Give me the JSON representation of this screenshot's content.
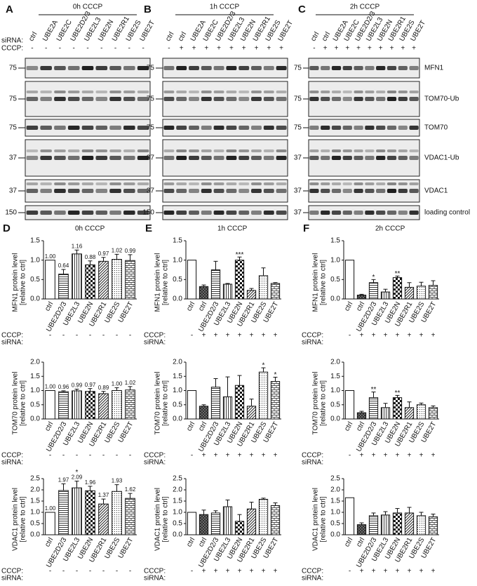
{
  "blot_labels": {
    "sirna": "siRNA:",
    "cccp": "CCCP:"
  },
  "proteins": [
    "MFN1",
    "TOM70-Ub",
    "TOM70",
    "VDAC1-Ub",
    "VDAC1",
    "loading control"
  ],
  "blots": [
    {
      "letter": "A",
      "title": "0h CCCP",
      "lanes": [
        "ctrl",
        "UBE2A",
        "UBE2C",
        "UBE2D2/3",
        "UBE2L3",
        "UBE2N",
        "UBE2R1",
        "UBE2S",
        "UBE2T"
      ],
      "cccp": [
        "-",
        "-",
        "-",
        "-",
        "-",
        "-",
        "-",
        "-",
        "-"
      ],
      "markers": [
        75,
        75,
        75,
        37,
        37,
        150
      ]
    },
    {
      "letter": "B",
      "title": "1h CCCP",
      "lanes": [
        "ctrl",
        "ctrl",
        "UBE2A",
        "UBE2C",
        "UBE2D2/3",
        "UBE2L3",
        "UBE2N",
        "UBE2R1",
        "UBE2S",
        "UBE2T"
      ],
      "cccp": [
        "-",
        "+",
        "+",
        "+",
        "+",
        "+",
        "+",
        "+",
        "+",
        "+"
      ],
      "markers": [
        75,
        75,
        75,
        37,
        37,
        150
      ]
    },
    {
      "letter": "C",
      "title": "2h CCCP",
      "lanes": [
        "ctrl",
        "ctrl",
        "UBE2A",
        "UBE2C",
        "UBE2D2/3",
        "UBE2L3",
        "UBE2N",
        "UBE2R1",
        "UBE2S",
        "UBE2T"
      ],
      "cccp": [
        "-",
        "+",
        "+",
        "+",
        "+",
        "+",
        "+",
        "+",
        "+",
        "+"
      ],
      "markers": [
        75,
        75,
        75,
        37,
        37,
        37
      ]
    }
  ],
  "chart_data": [
    {
      "type": "bar",
      "panel": "D",
      "title": "0h CCCP",
      "ylabel": [
        "MFN1 protein level",
        "[relative to ctrl]"
      ],
      "row_labels": {
        "cccp": "CCCP:",
        "sirna": "siRNA:"
      },
      "categories": [
        "ctrl",
        "UBE2D2/3",
        "UBE2L3",
        "UBE2N",
        "UBE2R1",
        "UBE2S",
        "UBE2T"
      ],
      "cccp": [
        "-",
        "-",
        "-",
        "-",
        "-",
        "-",
        "-"
      ],
      "values": [
        1,
        0.64,
        1.16,
        0.88,
        0.97,
        1.02,
        0.99
      ],
      "value_labels": [
        "1.00",
        "0.64",
        "1.16",
        "0.88",
        "0.97",
        "1.02",
        "0.99"
      ],
      "errors": [
        0,
        0.12,
        0.1,
        0.1,
        0.1,
        0.13,
        0.15
      ],
      "significance": [
        null,
        null,
        null,
        null,
        null,
        null,
        null
      ],
      "fills": [
        "white",
        "hlines",
        "vlines",
        "check",
        "diag",
        "dots",
        "brick"
      ],
      "ylim": [
        0,
        1.5
      ],
      "yticks": [
        {
          "value": 0,
          "label": "0.0"
        },
        0.5,
        {
          "value": 1,
          "label": "1.0"
        },
        1.5
      ]
    },
    {
      "type": "bar",
      "ylabel": [
        "TOM70 protein level",
        "[relative to ctrl]"
      ],
      "row_labels": {
        "cccp": "CCCP:",
        "sirna": "siRNA:"
      },
      "categories": [
        "ctrl",
        "UBE2D2/3",
        "UBE2L3",
        "UBE2N",
        "UBE2R1",
        "UBE2S",
        "UBE2T"
      ],
      "cccp": [
        "-",
        "-",
        "-",
        "-",
        "-",
        "-",
        "-"
      ],
      "values": [
        1,
        0.96,
        0.99,
        0.97,
        0.89,
        1,
        1.02
      ],
      "value_labels": [
        "1.00",
        "0.96",
        "0.99",
        "0.97",
        "0.89",
        "1.00",
        "1.02"
      ],
      "errors": [
        0,
        0.03,
        0.06,
        0.1,
        0.08,
        0.1,
        0.12
      ],
      "significance": [
        null,
        null,
        null,
        null,
        null,
        null,
        null
      ],
      "fills": [
        "white",
        "hlines",
        "vlines",
        "check",
        "diag",
        "dots",
        "brick"
      ],
      "ylim": [
        0,
        2
      ],
      "yticks": [
        {
          "value": 0,
          "label": "0.0"
        },
        0.5,
        {
          "value": 1,
          "label": "1.0"
        },
        1.5,
        {
          "value": 2,
          "label": "2.0"
        }
      ]
    },
    {
      "type": "bar",
      "ylabel": [
        "VDAC1 protein level",
        "[relative to ctrl]"
      ],
      "row_labels": {
        "cccp": "CCCP:",
        "sirna": "siRNA:"
      },
      "categories": [
        "ctrl",
        "UBE2D2/3",
        "UBE2L3",
        "UBE2N",
        "UBE2R1",
        "UBE2S",
        "UBE2T"
      ],
      "cccp": [
        "-",
        "-",
        "-",
        "-",
        "-",
        "-",
        "-"
      ],
      "values": [
        1,
        1.97,
        2.09,
        1.96,
        1.37,
        1.93,
        1.62
      ],
      "value_labels": [
        "1.00",
        "1.97",
        "2.09",
        "1.96",
        "1.37",
        "1.93",
        "1.62"
      ],
      "errors": [
        0,
        0.3,
        0.3,
        0.2,
        0.22,
        0.3,
        0.22
      ],
      "significance": [
        null,
        null,
        "*",
        null,
        null,
        null,
        null
      ],
      "fills": [
        "white",
        "hlines",
        "vlines",
        "check",
        "diag",
        "dots",
        "brick"
      ],
      "ylim": [
        0,
        2.5
      ],
      "yticks": [
        {
          "value": 0,
          "label": "0.0"
        },
        0.5,
        {
          "value": 1,
          "label": "1.0"
        },
        1.5,
        {
          "value": 2,
          "label": "2.0"
        },
        2.5
      ]
    },
    {
      "type": "bar",
      "panel": "E",
      "title": "1h CCCP",
      "ylabel": [
        "MFN1 protein level",
        "[relative to ctrl]"
      ],
      "row_labels": {
        "cccp": "CCCP:",
        "sirna": "siRNA:"
      },
      "categories": [
        "ctrl",
        "ctrl",
        "UBE2D2/3",
        "UBE2L3",
        "UBE2N",
        "UBE2R1",
        "UBE2S",
        "UBE2T"
      ],
      "cccp": [
        "-",
        "+",
        "+",
        "+",
        "+",
        "+",
        "+",
        "+"
      ],
      "values": [
        1,
        0.32,
        0.75,
        0.38,
        1,
        0.22,
        0.6,
        0.4
      ],
      "errors": [
        0,
        0.04,
        0.22,
        0.02,
        0.08,
        0.05,
        0.2,
        0.02
      ],
      "significance": [
        null,
        null,
        null,
        null,
        "***",
        null,
        null,
        null
      ],
      "fills": [
        "white",
        "cross",
        "hlines",
        "vlines",
        "check",
        "diag",
        "dots",
        "brick"
      ],
      "ylim": [
        0,
        1.5
      ],
      "yticks": [
        {
          "value": 0,
          "label": "0.0"
        },
        0.5,
        {
          "value": 1,
          "label": "1.0"
        },
        1.5
      ]
    },
    {
      "type": "bar",
      "ylabel": [
        "TOM70 protein level",
        "[relative to ctrl]"
      ],
      "row_labels": {
        "cccp": "CCCP:",
        "sirna": "siRNA:"
      },
      "categories": [
        "ctrl",
        "ctrl",
        "UBE2D2/3",
        "UBE2L3",
        "UBE2N",
        "UBE2R1",
        "UBE2S",
        "UBE2T"
      ],
      "cccp": [
        "-",
        "+",
        "+",
        "+",
        "+",
        "+",
        "+",
        "+"
      ],
      "values": [
        1,
        0.45,
        1.12,
        0.78,
        1.18,
        0.45,
        1.65,
        1.32
      ],
      "errors": [
        0,
        0.05,
        0.3,
        0.7,
        0.35,
        0.25,
        0.15,
        0.15
      ],
      "significance": [
        null,
        null,
        null,
        null,
        null,
        null,
        "*",
        "*"
      ],
      "fills": [
        "white",
        "cross",
        "hlines",
        "vlines",
        "check",
        "diag",
        "dots",
        "brick"
      ],
      "ylim": [
        0,
        2
      ],
      "yticks": [
        {
          "value": 0,
          "label": "0.0"
        },
        0.5,
        {
          "value": 1,
          "label": "1.0"
        },
        1.5,
        {
          "value": 2,
          "label": "2.0"
        }
      ]
    },
    {
      "type": "bar",
      "ylabel": [
        "VDAC1 protein level",
        "[relative to ctrl]"
      ],
      "row_labels": {
        "cccp": "CCCP:",
        "sirna": "siRNA:"
      },
      "categories": [
        "ctrl",
        "ctrl",
        "UBE2D2/3",
        "UBE2L3",
        "UBE2N",
        "UBE2R1",
        "UBE2S",
        "UBE2T"
      ],
      "cccp": [
        "-",
        "+",
        "+",
        "+",
        "+",
        "+",
        "+",
        "+"
      ],
      "values": [
        1,
        0.9,
        0.97,
        1.25,
        0.6,
        1.15,
        1.58,
        1.3
      ],
      "errors": [
        0,
        0.2,
        0.1,
        0.3,
        0.3,
        0.3,
        0.05,
        0.12
      ],
      "significance": [
        null,
        null,
        null,
        null,
        null,
        null,
        null,
        null
      ],
      "fills": [
        "white",
        "cross",
        "hlines",
        "vlines",
        "check",
        "diag",
        "dots",
        "brick"
      ],
      "ylim": [
        0,
        2.5
      ],
      "yticks": [
        {
          "value": 0,
          "label": "0.0"
        },
        0.5,
        {
          "value": 1,
          "label": "1.0"
        },
        1.5,
        {
          "value": 2,
          "label": "2.0"
        },
        2.5
      ]
    },
    {
      "type": "bar",
      "panel": "F",
      "title": "2h CCCP",
      "ylabel": [
        "MFN1 protein level",
        "[relative to ctrl]"
      ],
      "row_labels": {
        "cccp": "CCCP:",
        "sirna": "siRNA:"
      },
      "categories": [
        "ctrl",
        "ctrl",
        "UBE2D2/3",
        "UBE2L3",
        "UBE2N",
        "UBE2R1",
        "UBE2S",
        "UBE2T"
      ],
      "cccp": [
        "-",
        "+",
        "+",
        "+",
        "+",
        "+",
        "+",
        "+"
      ],
      "values": [
        1,
        0.1,
        0.42,
        0.18,
        0.55,
        0.3,
        0.33,
        0.35
      ],
      "errors": [
        0,
        0.02,
        0.08,
        0.07,
        0.04,
        0.12,
        0.1,
        0.12
      ],
      "significance": [
        null,
        null,
        "*",
        null,
        "**",
        null,
        null,
        null
      ],
      "fills": [
        "white",
        "cross",
        "hlines",
        "vlines",
        "check",
        "diag",
        "dots",
        "brick"
      ],
      "ylim": [
        0,
        1.5
      ],
      "yticks": [
        {
          "value": 0,
          "label": "0.0"
        },
        0.5,
        {
          "value": 1,
          "label": "1.0"
        },
        1.5
      ]
    },
    {
      "type": "bar",
      "ylabel": [
        "TOM70 protein level",
        "[relative to ctrl]"
      ],
      "row_labels": {
        "cccp": "CCCP:",
        "sirna": "siRNA:"
      },
      "categories": [
        "ctrl",
        "ctrl",
        "UBE2D2/3",
        "UBE2L3",
        "UBE2N",
        "UBE2R1",
        "UBE2S",
        "UBE2T"
      ],
      "cccp": [
        "-",
        "+",
        "+",
        "+",
        "+",
        "+",
        "+",
        "+"
      ],
      "values": [
        1,
        0.22,
        0.75,
        0.4,
        0.75,
        0.4,
        0.5,
        0.4
      ],
      "errors": [
        0,
        0.05,
        0.2,
        0.15,
        0.08,
        0.2,
        0.06,
        0.06
      ],
      "significance": [
        null,
        null,
        "**",
        null,
        "**",
        null,
        null,
        null
      ],
      "fills": [
        "white",
        "cross",
        "hlines",
        "vlines",
        "check",
        "diag",
        "dots",
        "brick"
      ],
      "ylim": [
        0,
        2
      ],
      "yticks": [
        {
          "value": 0,
          "label": "0.0"
        },
        0.5,
        {
          "value": 1,
          "label": "1.0"
        },
        1.5,
        {
          "value": 2,
          "label": "2.0"
        }
      ]
    },
    {
      "type": "bar",
      "ylabel": [
        "VDAC1 protein level",
        "[relative to ctrl]"
      ],
      "row_labels": {
        "cccp": "CCCP:",
        "sirna": "siRNA:"
      },
      "categories": [
        "ctrl",
        "ctrl",
        "UBE2D2/3",
        "UBE2L3",
        "UBE2N",
        "UBE2R1",
        "UBE2S",
        "UBE2T"
      ],
      "cccp": [
        "-",
        "+",
        "+",
        "+",
        "+",
        "+",
        "+",
        "+"
      ],
      "values": [
        1.65,
        0.45,
        0.85,
        0.88,
        0.97,
        0.97,
        0.85,
        0.8
      ],
      "errors": [
        0,
        0.08,
        0.12,
        0.15,
        0.2,
        0.25,
        0.15,
        0.12
      ],
      "significance": [
        null,
        null,
        null,
        null,
        null,
        null,
        null,
        null
      ],
      "fills": [
        "white",
        "cross",
        "hlines",
        "vlines",
        "check",
        "diag",
        "dots",
        "brick"
      ],
      "ylim": [
        0,
        2.5
      ],
      "yticks": [
        {
          "value": 0,
          "label": "0.0"
        },
        0.5,
        {
          "value": 1,
          "label": "1.0"
        },
        1.5,
        {
          "value": 2,
          "label": "2.0"
        },
        2.5
      ]
    }
  ]
}
